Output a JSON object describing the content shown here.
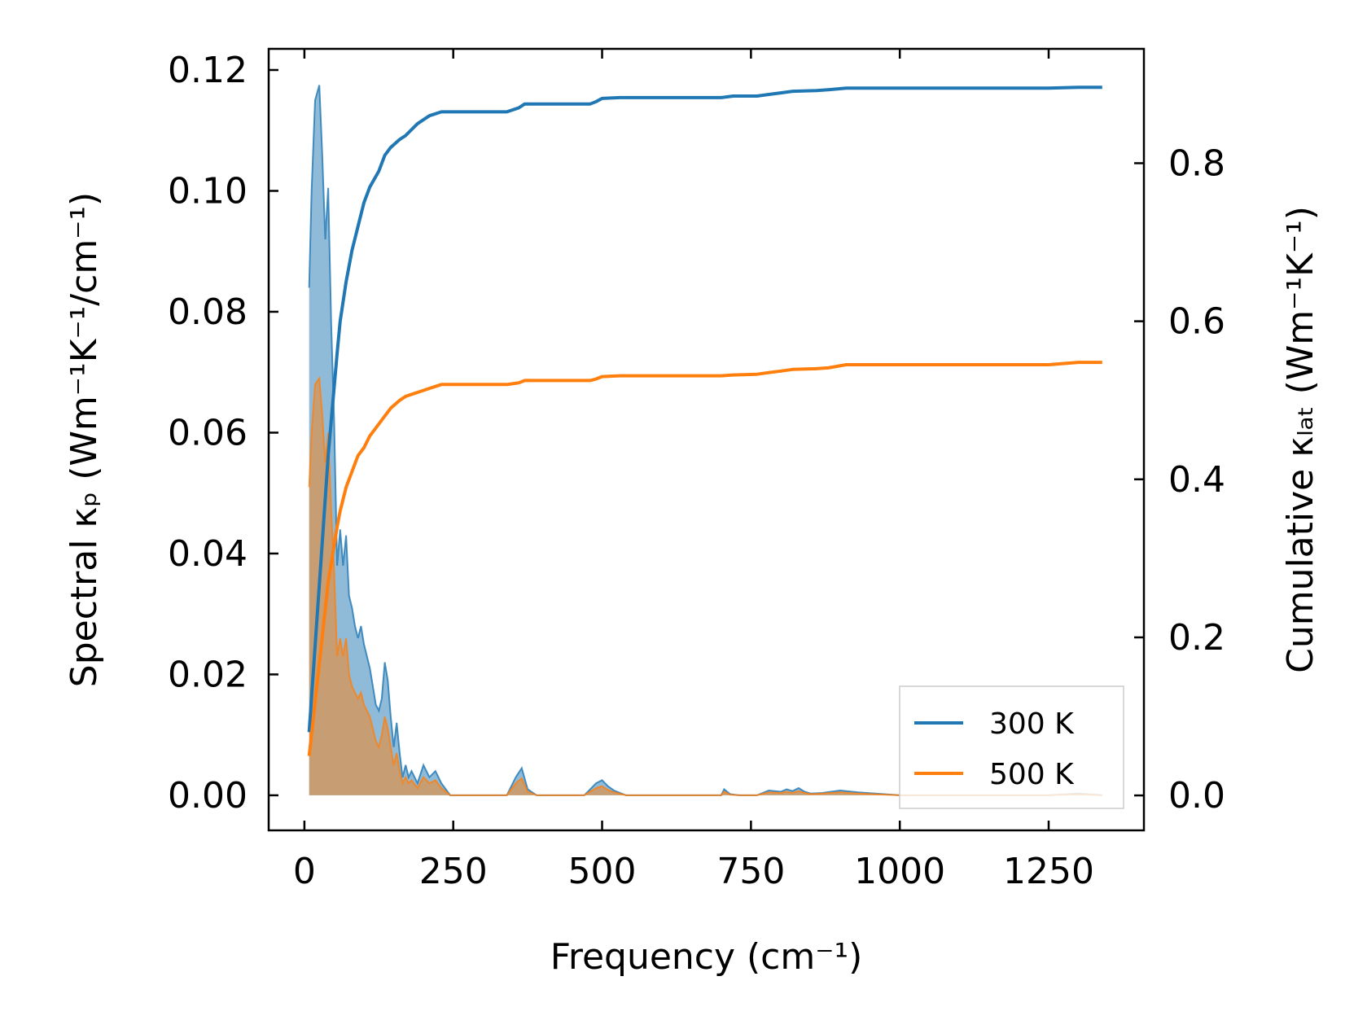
{
  "chart_data": {
    "type": "line",
    "xlabel": "Frequency (cm⁻¹)",
    "ylabel_left": "Spectral κₚ (Wm⁻¹K⁻¹/cm⁻¹)",
    "ylabel_right": "Cumulative κₗₐₜ (Wm⁻¹K⁻¹)",
    "xlim": [
      -60,
      1410
    ],
    "ylim_left": [
      -0.0058,
      0.1235
    ],
    "ylim_right": [
      -0.0442,
      0.9447
    ],
    "x_ticks": [
      "0",
      "250",
      "500",
      "750",
      "1000",
      "1250"
    ],
    "x_tick_values": [
      0,
      250,
      500,
      750,
      1000,
      1250
    ],
    "y_left_ticks": [
      "0.00",
      "0.02",
      "0.04",
      "0.06",
      "0.08",
      "0.10",
      "0.12"
    ],
    "y_left_tick_values": [
      0,
      0.02,
      0.04,
      0.06,
      0.08,
      0.1,
      0.12
    ],
    "y_right_ticks": [
      "0.0",
      "0.2",
      "0.4",
      "0.6",
      "0.8"
    ],
    "y_right_tick_values": [
      0,
      0.2,
      0.4,
      0.6,
      0.8
    ],
    "grid": false,
    "legend_position": "lower-right",
    "series": [
      {
        "name": "300 K",
        "color": "#1f77b4",
        "spectral": {
          "x": [
            8,
            12,
            18,
            25,
            30,
            35,
            40,
            45,
            50,
            55,
            60,
            65,
            70,
            75,
            80,
            85,
            90,
            95,
            100,
            105,
            110,
            115,
            120,
            125,
            130,
            135,
            140,
            145,
            150,
            155,
            160,
            165,
            170,
            175,
            180,
            190,
            200,
            210,
            220,
            230,
            245,
            260,
            300,
            340,
            355,
            365,
            375,
            390,
            420,
            470,
            490,
            500,
            510,
            520,
            540,
            600,
            700,
            705,
            715,
            730,
            760,
            780,
            800,
            810,
            820,
            830,
            840,
            850,
            870,
            900,
            930,
            1000,
            1100,
            1200,
            1250,
            1300,
            1340
          ],
          "y": [
            0.084,
            0.1,
            0.115,
            0.1175,
            0.106,
            0.092,
            0.1005,
            0.078,
            0.062,
            0.038,
            0.044,
            0.038,
            0.043,
            0.033,
            0.031,
            0.028,
            0.026,
            0.028,
            0.025,
            0.023,
            0.021,
            0.018,
            0.015,
            0.014,
            0.016,
            0.022,
            0.019,
            0.013,
            0.008,
            0.012,
            0.007,
            0.003,
            0.005,
            0.003,
            0.004,
            0.002,
            0.005,
            0.003,
            0.004,
            0.002,
            0.0,
            0.0,
            0.0,
            0.0,
            0.003,
            0.0045,
            0.001,
            0.0,
            0.0,
            0.0,
            0.002,
            0.0025,
            0.0015,
            0.0008,
            0.0,
            0.0,
            0.0,
            0.001,
            0.0002,
            0.0,
            0.0,
            0.0008,
            0.0006,
            0.001,
            0.0007,
            0.0012,
            0.0006,
            0.0003,
            0.0004,
            0.0008,
            0.0005,
            0.0,
            0.0,
            0.0,
            0.0,
            0.0003,
            0.0
          ]
        },
        "cumulative": {
          "x": [
            8,
            30,
            40,
            55,
            60,
            70,
            80,
            90,
            100,
            110,
            125,
            135,
            145,
            160,
            170,
            190,
            210,
            230,
            340,
            360,
            370,
            380,
            470,
            480,
            490,
            500,
            530,
            600,
            700,
            720,
            760,
            780,
            800,
            820,
            860,
            880,
            910,
            1000,
            1250,
            1300,
            1340
          ],
          "y": [
            0.08,
            0.32,
            0.43,
            0.56,
            0.6,
            0.65,
            0.69,
            0.72,
            0.75,
            0.77,
            0.79,
            0.81,
            0.82,
            0.83,
            0.835,
            0.85,
            0.86,
            0.865,
            0.865,
            0.87,
            0.875,
            0.875,
            0.875,
            0.875,
            0.878,
            0.882,
            0.883,
            0.883,
            0.883,
            0.885,
            0.885,
            0.887,
            0.889,
            0.891,
            0.892,
            0.893,
            0.895,
            0.895,
            0.895,
            0.896,
            0.896
          ]
        }
      },
      {
        "name": "500 K",
        "color": "#ff7f0e",
        "spectral": {
          "x": [
            8,
            12,
            18,
            25,
            30,
            35,
            40,
            45,
            50,
            55,
            60,
            65,
            70,
            75,
            80,
            85,
            90,
            95,
            100,
            105,
            110,
            115,
            120,
            125,
            130,
            135,
            140,
            145,
            150,
            155,
            160,
            165,
            170,
            175,
            180,
            190,
            200,
            210,
            220,
            230,
            245,
            260,
            300,
            340,
            355,
            365,
            375,
            390,
            420,
            470,
            490,
            500,
            510,
            520,
            540,
            600,
            700,
            705,
            715,
            730,
            760,
            780,
            800,
            810,
            820,
            830,
            840,
            850,
            870,
            900,
            930,
            1000,
            1100,
            1200,
            1250,
            1300,
            1340
          ],
          "y": [
            0.051,
            0.06,
            0.068,
            0.069,
            0.063,
            0.055,
            0.06,
            0.047,
            0.037,
            0.023,
            0.026,
            0.023,
            0.026,
            0.02,
            0.018,
            0.017,
            0.016,
            0.017,
            0.015,
            0.014,
            0.013,
            0.011,
            0.009,
            0.008,
            0.01,
            0.013,
            0.011,
            0.008,
            0.005,
            0.007,
            0.004,
            0.002,
            0.003,
            0.002,
            0.0025,
            0.0012,
            0.003,
            0.002,
            0.0025,
            0.0012,
            0.0,
            0.0,
            0.0,
            0.0,
            0.002,
            0.0028,
            0.0006,
            0.0,
            0.0,
            0.0,
            0.0012,
            0.0015,
            0.0009,
            0.0005,
            0.0,
            0.0,
            0.0,
            0.0006,
            0.0001,
            0.0,
            0.0,
            0.0005,
            0.0004,
            0.0006,
            0.0004,
            0.0007,
            0.0004,
            0.0002,
            0.0003,
            0.0005,
            0.0003,
            0.0,
            0.0,
            0.0,
            0.0,
            0.0002,
            0.0
          ]
        },
        "cumulative": {
          "x": [
            8,
            30,
            40,
            55,
            60,
            70,
            80,
            90,
            100,
            110,
            125,
            135,
            145,
            160,
            170,
            190,
            210,
            230,
            340,
            360,
            370,
            380,
            470,
            480,
            490,
            500,
            530,
            600,
            700,
            720,
            760,
            780,
            800,
            820,
            860,
            880,
            910,
            1000,
            1250,
            1300,
            1340
          ],
          "y": [
            0.05,
            0.2,
            0.27,
            0.34,
            0.36,
            0.39,
            0.41,
            0.43,
            0.44,
            0.455,
            0.47,
            0.48,
            0.49,
            0.5,
            0.505,
            0.51,
            0.515,
            0.52,
            0.52,
            0.522,
            0.525,
            0.525,
            0.525,
            0.525,
            0.527,
            0.53,
            0.531,
            0.531,
            0.531,
            0.532,
            0.533,
            0.535,
            0.537,
            0.539,
            0.54,
            0.541,
            0.545,
            0.545,
            0.545,
            0.548,
            0.548
          ]
        }
      }
    ]
  }
}
